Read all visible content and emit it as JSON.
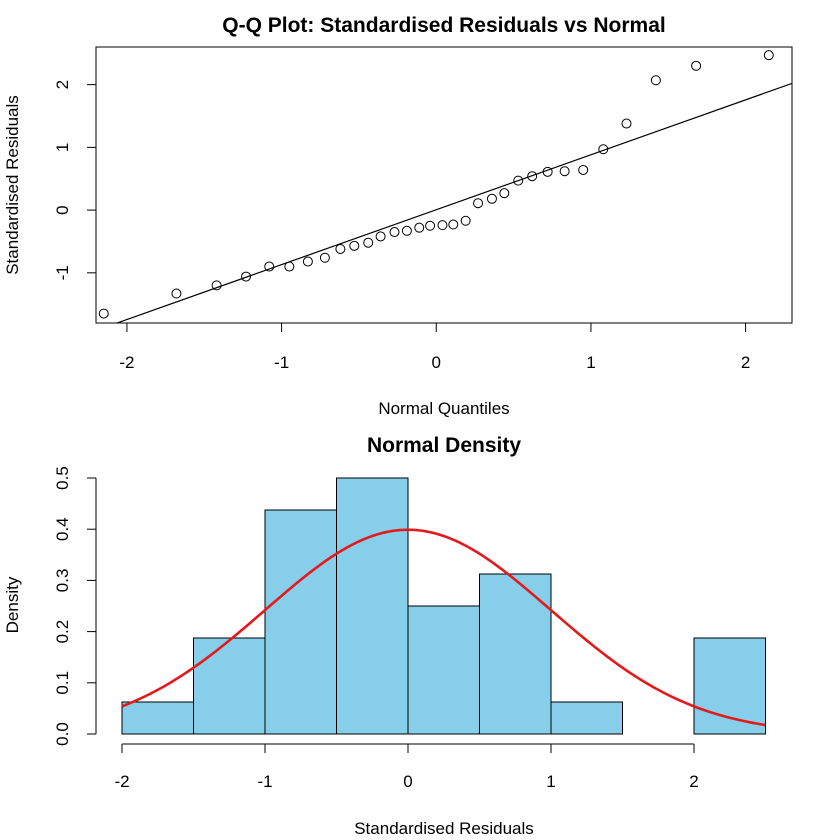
{
  "chart_data": [
    {
      "type": "scatter",
      "title": "Q-Q Plot: Standardised Residuals vs Normal",
      "xlabel": "Normal Quantiles",
      "ylabel": "Standardised Residuals",
      "xlim": [
        -2.2,
        2.3
      ],
      "ylim": [
        -1.8,
        2.6
      ],
      "xticks": [
        -2,
        -1,
        0,
        1,
        2
      ],
      "yticks": [
        -1,
        0,
        1,
        2
      ],
      "reference_line": {
        "x1": -2.2,
        "y1": -1.92,
        "x2": 2.3,
        "y2": 2.02
      },
      "points": [
        {
          "x": -2.15,
          "y": -1.65
        },
        {
          "x": -1.68,
          "y": -1.33
        },
        {
          "x": -1.42,
          "y": -1.2
        },
        {
          "x": -1.23,
          "y": -1.06
        },
        {
          "x": -1.08,
          "y": -0.9
        },
        {
          "x": -0.95,
          "y": -0.9
        },
        {
          "x": -0.83,
          "y": -0.82
        },
        {
          "x": -0.72,
          "y": -0.76
        },
        {
          "x": -0.62,
          "y": -0.62
        },
        {
          "x": -0.53,
          "y": -0.57
        },
        {
          "x": -0.44,
          "y": -0.52
        },
        {
          "x": -0.36,
          "y": -0.42
        },
        {
          "x": -0.27,
          "y": -0.35
        },
        {
          "x": -0.19,
          "y": -0.33
        },
        {
          "x": -0.11,
          "y": -0.28
        },
        {
          "x": -0.04,
          "y": -0.25
        },
        {
          "x": 0.04,
          "y": -0.24
        },
        {
          "x": 0.11,
          "y": -0.23
        },
        {
          "x": 0.19,
          "y": -0.17
        },
        {
          "x": 0.27,
          "y": 0.11
        },
        {
          "x": 0.36,
          "y": 0.18
        },
        {
          "x": 0.44,
          "y": 0.27
        },
        {
          "x": 0.53,
          "y": 0.47
        },
        {
          "x": 0.62,
          "y": 0.54
        },
        {
          "x": 0.72,
          "y": 0.61
        },
        {
          "x": 0.83,
          "y": 0.62
        },
        {
          "x": 0.95,
          "y": 0.64
        },
        {
          "x": 1.08,
          "y": 0.97
        },
        {
          "x": 1.23,
          "y": 1.38
        },
        {
          "x": 1.42,
          "y": 2.07
        },
        {
          "x": 1.68,
          "y": 2.3
        },
        {
          "x": 2.15,
          "y": 2.47
        }
      ]
    },
    {
      "type": "bar",
      "title": "Normal Density",
      "xlabel": "Standardised Residuals",
      "ylabel": "Density",
      "xlim": [
        -2.2,
        2.6
      ],
      "ylim": [
        0,
        0.5
      ],
      "xticks": [
        -2,
        -1,
        0,
        1,
        2
      ],
      "yticks": [
        0.0,
        0.1,
        0.2,
        0.3,
        0.4,
        0.5
      ],
      "bins": [
        {
          "from": -2.0,
          "to": -1.5,
          "density": 0.0625
        },
        {
          "from": -1.5,
          "to": -1.0,
          "density": 0.1875
        },
        {
          "from": -1.0,
          "to": -0.5,
          "density": 0.4375
        },
        {
          "from": -0.5,
          "to": 0.0,
          "density": 0.5
        },
        {
          "from": 0.0,
          "to": 0.5,
          "density": 0.25
        },
        {
          "from": 0.5,
          "to": 1.0,
          "density": 0.3125
        },
        {
          "from": 1.0,
          "to": 1.5,
          "density": 0.0625
        },
        {
          "from": 1.5,
          "to": 2.0,
          "density": 0.0
        },
        {
          "from": 2.0,
          "to": 2.5,
          "density": 0.1875
        }
      ],
      "bar_color": "#87CEEB",
      "curve": {
        "distribution": "normal",
        "mean": 0,
        "sd": 1,
        "from": -2.0,
        "to": 2.5,
        "color": "#E31A1C"
      }
    }
  ]
}
